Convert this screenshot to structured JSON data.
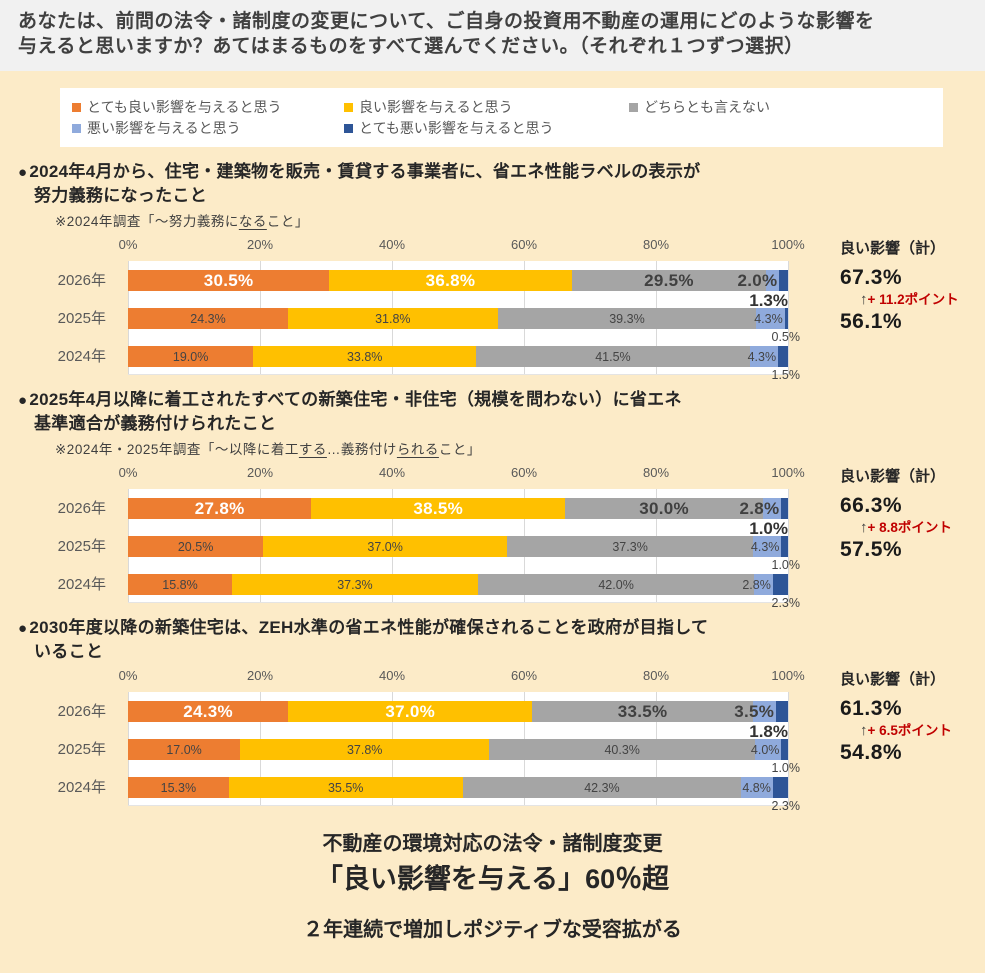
{
  "header": {
    "title_line1": "あなたは、前問の法令・諸制度の変更について、ご自身の投資用不動産の運用にどのような影響を",
    "title_line2": "与えると思いますか？あてはまるものをすべて選んでください。（それぞれ１つずつ選択）"
  },
  "legend": {
    "items": [
      {
        "label": "とても良い影響を与えると思う",
        "color": "#ED7D31"
      },
      {
        "label": "良い影響を与えると思う",
        "color": "#FFC000"
      },
      {
        "label": "どちらとも言えない",
        "color": "#A5A5A5"
      },
      {
        "label": "悪い影響を与えると思う",
        "color": "#8FAADC"
      },
      {
        "label": "とても悪い影響を与えると思う",
        "color": "#2E5597"
      }
    ]
  },
  "ui": {
    "bullet": "●"
  },
  "colors": {
    "series": [
      "#ED7D31",
      "#FFC000",
      "#A5A5A5",
      "#8FAADC",
      "#2E5597"
    ],
    "delta_red": "#C00000",
    "grid": "#D9D9D9",
    "bg_cream": "#FCEBC8",
    "header_bg": "#F1F1F1"
  },
  "chart_data": [
    {
      "type": "bar",
      "stacked": true,
      "orientation": "horizontal",
      "xlim": [
        0,
        100
      ],
      "title_line1": "2024年4月から、住宅・建築物を販売・賃貸する事業者に、省エネ性能ラベルの表示が",
      "title_line2": "努力義務になったこと",
      "note_parts": [
        {
          "t": "※2024年調査「〜努力義務に"
        },
        {
          "t": "なる",
          "u": true
        },
        {
          "t": "こと」"
        }
      ],
      "axis_ticks": [
        "0%",
        "20%",
        "40%",
        "60%",
        "80%",
        "100%"
      ],
      "summary_header": "良い影響（計）",
      "series_names": [
        "とても良い影響を与えると思う",
        "良い影響を与えると思う",
        "どちらとも言えない",
        "悪い影響を与えると思う",
        "とても悪い影響を与えると思う"
      ],
      "categories": [
        "2026年",
        "2025年",
        "2024年"
      ],
      "rows": [
        {
          "year": "2026年",
          "values": [
            30.5,
            36.8,
            29.5,
            2.0,
            1.3
          ],
          "emphasis": true
        },
        {
          "year": "2025年",
          "values": [
            24.3,
            31.8,
            39.3,
            4.3,
            0.5
          ],
          "emphasis": false
        },
        {
          "year": "2024年",
          "values": [
            19.0,
            33.8,
            41.5,
            4.3,
            1.5
          ],
          "emphasis": false
        }
      ],
      "totals": {
        "current": "67.3%",
        "arrow": "↑",
        "delta": "+ 11.2ポイント",
        "previous": "56.1%"
      }
    },
    {
      "type": "bar",
      "stacked": true,
      "orientation": "horizontal",
      "xlim": [
        0,
        100
      ],
      "title_line1": "2025年4月以降に着工されたすべての新築住宅・非住宅（規模を問わない）に省エネ",
      "title_line2": "基準適合が義務付けられたこと",
      "note_parts": [
        {
          "t": "※2024年・2025年調査「〜以降に着工"
        },
        {
          "t": "する",
          "u": true
        },
        {
          "t": "…義務付け"
        },
        {
          "t": "られる",
          "u": true
        },
        {
          "t": "こと」"
        }
      ],
      "axis_ticks": [
        "0%",
        "20%",
        "40%",
        "60%",
        "80%",
        "100%"
      ],
      "summary_header": "良い影響（計）",
      "series_names": [
        "とても良い影響を与えると思う",
        "良い影響を与えると思う",
        "どちらとも言えない",
        "悪い影響を与えると思う",
        "とても悪い影響を与えると思う"
      ],
      "categories": [
        "2026年",
        "2025年",
        "2024年"
      ],
      "rows": [
        {
          "year": "2026年",
          "values": [
            27.8,
            38.5,
            30.0,
            2.8,
            1.0
          ],
          "emphasis": true
        },
        {
          "year": "2025年",
          "values": [
            20.5,
            37.0,
            37.3,
            4.3,
            1.0
          ],
          "emphasis": false
        },
        {
          "year": "2024年",
          "values": [
            15.8,
            37.3,
            42.0,
            2.8,
            2.3
          ],
          "emphasis": false
        }
      ],
      "totals": {
        "current": "66.3%",
        "arrow": "↑",
        "delta": "+ 8.8ポイント",
        "previous": "57.5%"
      }
    },
    {
      "type": "bar",
      "stacked": true,
      "orientation": "horizontal",
      "xlim": [
        0,
        100
      ],
      "title_line1": "2030年度以降の新築住宅は、ZEH水準の省エネ性能が確保されることを政府が目指して",
      "title_line2": "いること",
      "note_parts": [],
      "axis_ticks": [
        "0%",
        "20%",
        "40%",
        "60%",
        "80%",
        "100%"
      ],
      "summary_header": "良い影響（計）",
      "series_names": [
        "とても良い影響を与えると思う",
        "良い影響を与えると思う",
        "どちらとも言えない",
        "悪い影響を与えると思う",
        "とても悪い影響を与えると思う"
      ],
      "categories": [
        "2026年",
        "2025年",
        "2024年"
      ],
      "rows": [
        {
          "year": "2026年",
          "values": [
            24.3,
            37.0,
            33.5,
            3.5,
            1.8
          ],
          "emphasis": true
        },
        {
          "year": "2025年",
          "values": [
            17.0,
            37.8,
            40.3,
            4.0,
            1.0
          ],
          "emphasis": false
        },
        {
          "year": "2024年",
          "values": [
            15.3,
            35.5,
            42.3,
            4.8,
            2.3
          ],
          "emphasis": false
        }
      ],
      "totals": {
        "current": "61.3%",
        "arrow": "↑",
        "delta": "+ 6.5ポイント",
        "previous": "54.8%"
      }
    }
  ],
  "footer": {
    "line1": "不動産の環境対応の法令・諸制度変更",
    "line2": "「良い影響を与える」60％超",
    "line3": "２年連続で増加しポジティブな受容拡がる"
  }
}
